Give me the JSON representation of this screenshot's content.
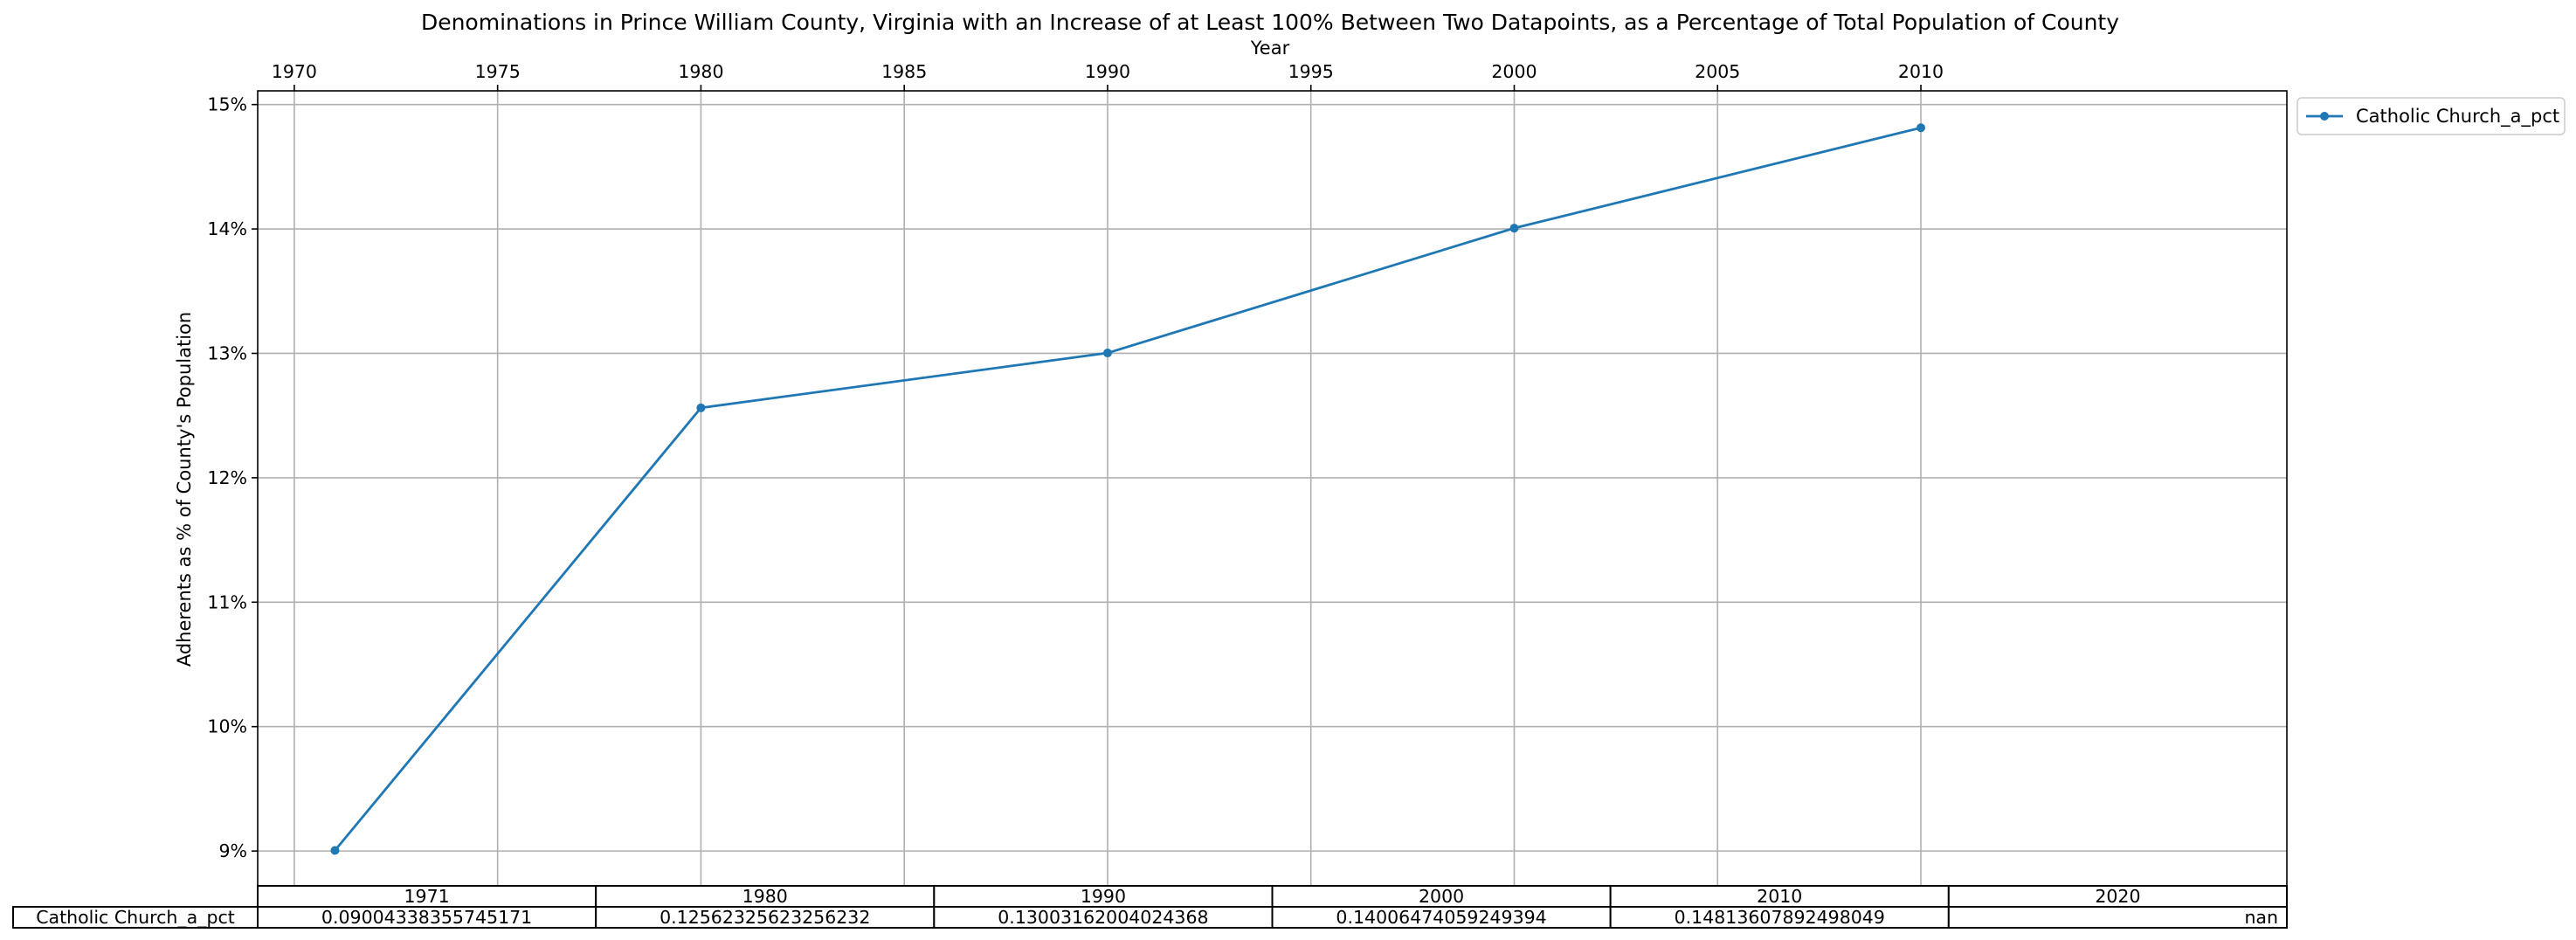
{
  "chart_data": {
    "type": "line",
    "title": "Denominations in Prince William County, Virginia with an Increase of at Least 100% Between Two Datapoints, as a Percentage of Total Population of County",
    "xlabel": "Year",
    "ylabel": "Adherents as % of County's Population",
    "x_axis_position": "top",
    "xlim": [
      1969.1,
      2019.0
    ],
    "ylim": [
      0.0872,
      0.1511
    ],
    "x_ticks": [
      1970,
      1975,
      1980,
      1985,
      1990,
      1995,
      2000,
      2005,
      2010
    ],
    "x_tick_labels": [
      "1970",
      "1975",
      "1980",
      "1985",
      "1990",
      "1995",
      "2000",
      "2005",
      "2010"
    ],
    "y_ticks": [
      0.09,
      0.1,
      0.11,
      0.12,
      0.13,
      0.14,
      0.15
    ],
    "y_tick_labels": [
      "9%",
      "10%",
      "11%",
      "12%",
      "13%",
      "14%",
      "15%"
    ],
    "grid": true,
    "legend_position": "outside-top-right",
    "series": [
      {
        "name": "Catholic Church_a_pct",
        "color": "#1f77b4",
        "marker": "dot",
        "x": [
          1971,
          1980,
          1990,
          2000,
          2010
        ],
        "y": [
          0.09004338355745171,
          0.12562325623256232,
          0.13003162004024368,
          0.14006474059249394,
          0.14813607892498049
        ]
      }
    ],
    "table": {
      "column_labels": [
        "1971",
        "1980",
        "1990",
        "2000",
        "2010",
        "2020"
      ],
      "rows": [
        {
          "label": "Catholic Church_a_pct",
          "cells": [
            "0.09004338355745171",
            "0.12562325623256232",
            "0.13003162004024368",
            "0.14006474059249394",
            "0.14813607892498049",
            "nan"
          ]
        }
      ]
    }
  }
}
